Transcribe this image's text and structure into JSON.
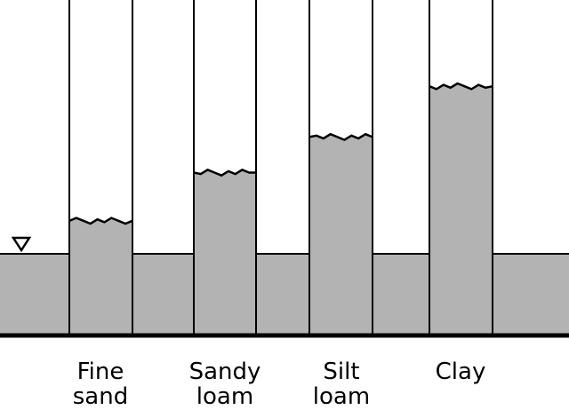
{
  "colors": {
    "fill": "#b3b3b3",
    "line": "#000000",
    "background": "#ffffff"
  },
  "water_table_icon": "inverted-triangle-icon",
  "columns": [
    {
      "key": "fine-sand",
      "label_line1": "Fine",
      "label_line2": "sand",
      "rise_fraction": 0.13
    },
    {
      "key": "sandy-loam",
      "label_line1": "Sandy",
      "label_line2": "loam",
      "rise_fraction": 0.32
    },
    {
      "key": "silt-loam",
      "label_line1": "Silt",
      "label_line2": "loam",
      "rise_fraction": 0.46
    },
    {
      "key": "clay",
      "label_line1": "Clay",
      "label_line2": "",
      "rise_fraction": 0.66
    }
  ]
}
